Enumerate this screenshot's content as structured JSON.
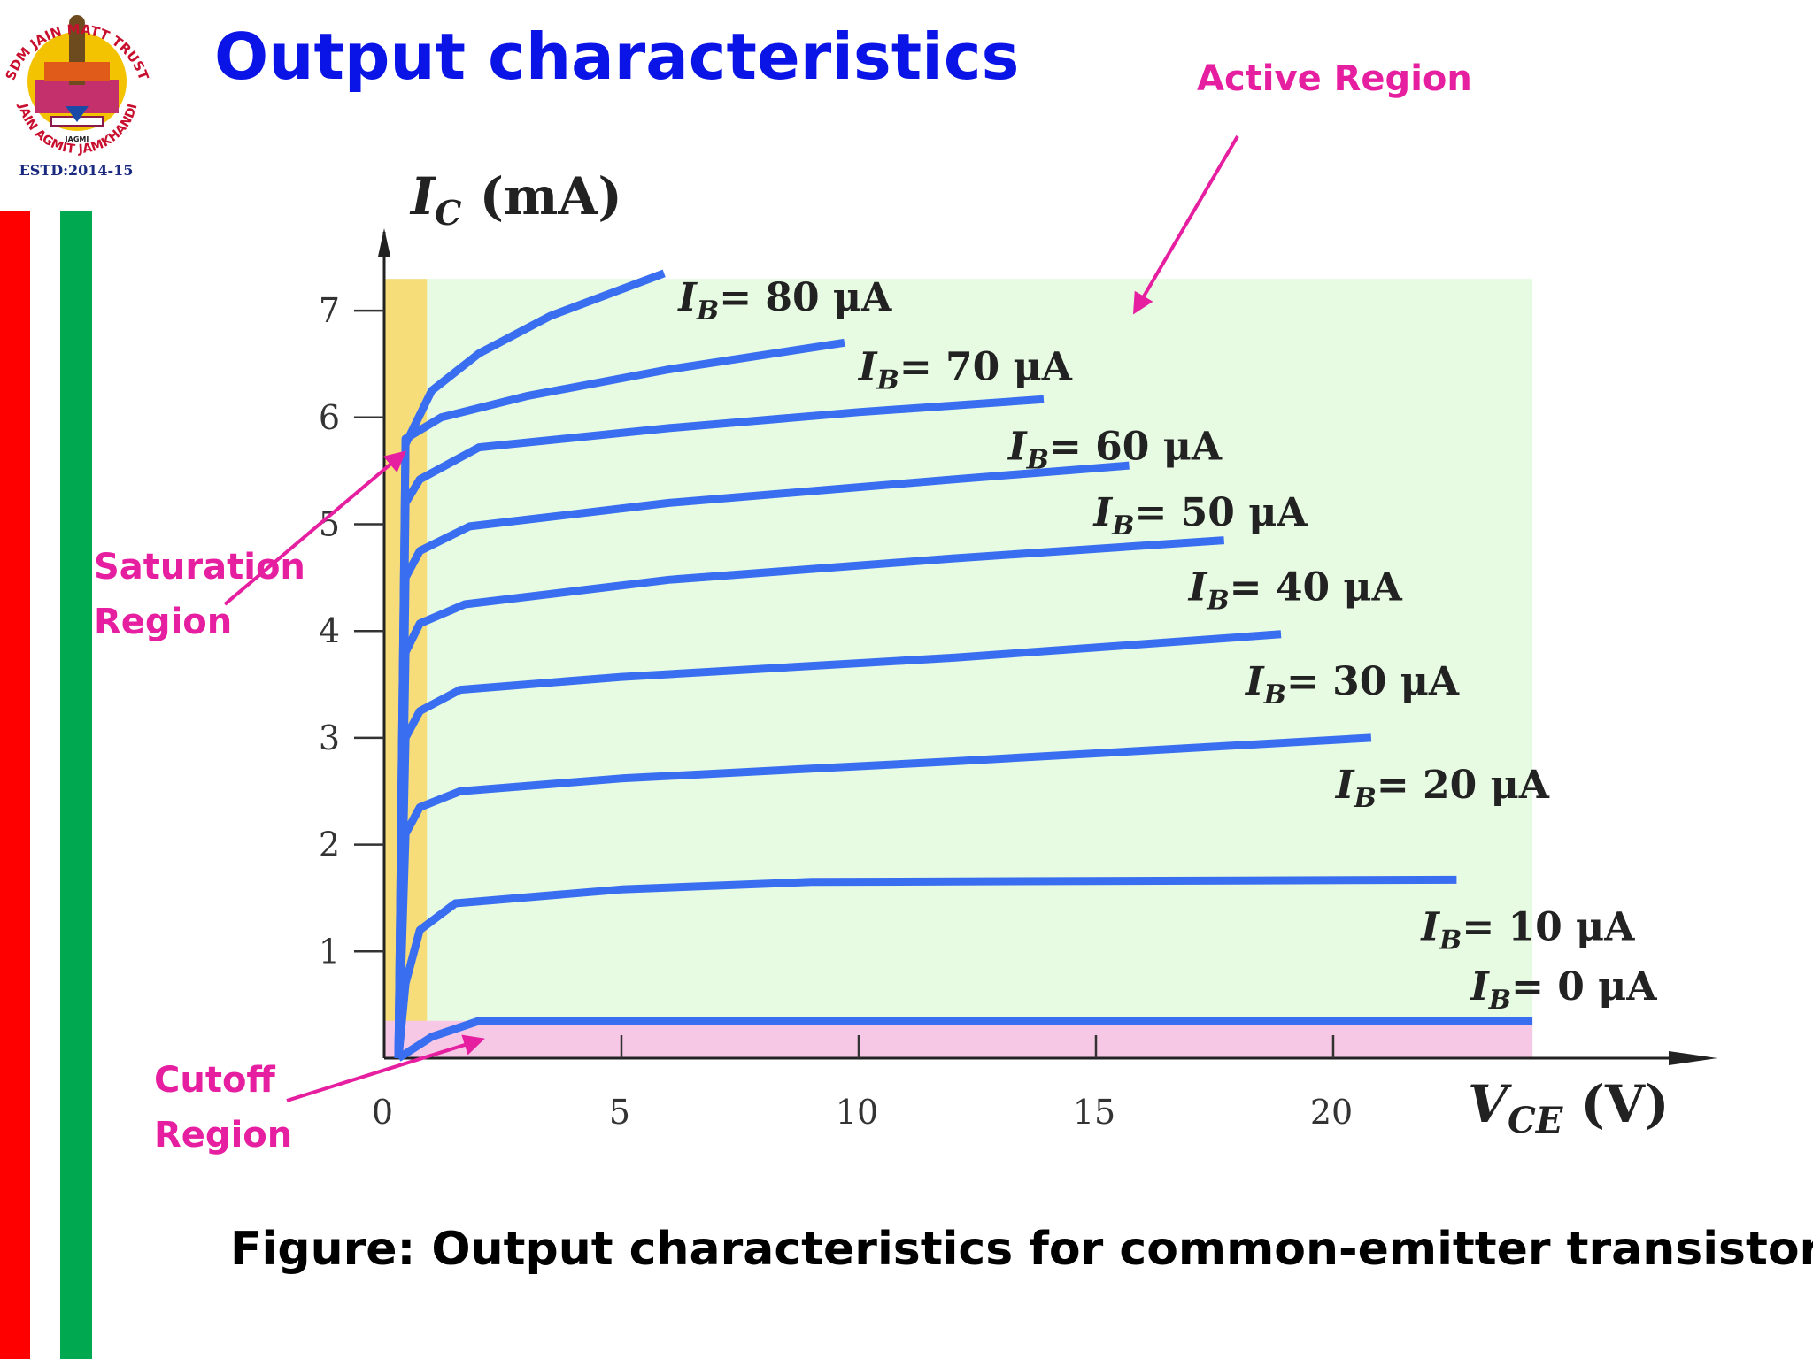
{
  "slide": {
    "title": "Output characteristics",
    "caption": "Figure: Output characteristics for common-emitter transistor"
  },
  "logo": {
    "arc_text": "SDM JAIN MATT TRUST",
    "lower_text": "JAIN AGMIT JAMKHANDI",
    "badge_text": "JAGMI",
    "estd": "ESTD:2014-15"
  },
  "annotations": {
    "active": "Active Region",
    "saturation": [
      "Saturation",
      "Region"
    ],
    "cutoff": [
      "Cutoff",
      "Region"
    ]
  },
  "colors": {
    "title": "#0a14e6",
    "annotation": "#e61ea0",
    "curve": "#3a6ef0",
    "active_region": "#e6fbe2",
    "saturation_region": "#f7dc7a",
    "cutoff_region": "#f7c8e6",
    "stripe_red": "#ff0000",
    "stripe_green": "#00a84f"
  },
  "chart_data": {
    "type": "line",
    "xlabel": "V",
    "xlabel_sub": "CE",
    "xlabel_unit": "(V)",
    "ylabel": "I",
    "ylabel_sub": "C",
    "ylabel_unit": "(mA)",
    "xlim": [
      0,
      25
    ],
    "ylim": [
      0,
      7.5
    ],
    "xticks": [
      0,
      5,
      10,
      15,
      20
    ],
    "yticks": [
      1,
      2,
      3,
      4,
      5,
      6,
      7
    ],
    "regions": {
      "saturation_vce_max": 0.9,
      "cutoff_ic_max": 0.35
    },
    "series": [
      {
        "name": "I_B = 0 μA",
        "label_base": "I",
        "label_sub": "B",
        "label_value": "= 0 μA",
        "points": [
          [
            0.3,
            0
          ],
          [
            1,
            0.2
          ],
          [
            2,
            0.35
          ],
          [
            24.2,
            0.35
          ]
        ]
      },
      {
        "name": "I_B = 10 μA",
        "label_base": "I",
        "label_sub": "B",
        "label_value": "= 10 μA",
        "points": [
          [
            0.3,
            0
          ],
          [
            0.45,
            0.7
          ],
          [
            0.75,
            1.2
          ],
          [
            1.5,
            1.45
          ],
          [
            5,
            1.58
          ],
          [
            9,
            1.65
          ],
          [
            22.6,
            1.67
          ]
        ]
      },
      {
        "name": "I_B = 20 μA",
        "label_base": "I",
        "label_sub": "B",
        "label_value": "= 20 μA",
        "points": [
          [
            0.3,
            0
          ],
          [
            0.45,
            2.1
          ],
          [
            0.75,
            2.35
          ],
          [
            1.6,
            2.5
          ],
          [
            5,
            2.62
          ],
          [
            12,
            2.78
          ],
          [
            20.8,
            3.0
          ]
        ]
      },
      {
        "name": "I_B = 30 μA",
        "label_base": "I",
        "label_sub": "B",
        "label_value": "= 30 μA",
        "points": [
          [
            0.3,
            0
          ],
          [
            0.45,
            3.0
          ],
          [
            0.75,
            3.25
          ],
          [
            1.6,
            3.45
          ],
          [
            5,
            3.57
          ],
          [
            12,
            3.75
          ],
          [
            18.9,
            3.97
          ]
        ]
      },
      {
        "name": "I_B = 40 μA",
        "label_base": "I",
        "label_sub": "B",
        "label_value": "= 40 μA",
        "points": [
          [
            0.3,
            0
          ],
          [
            0.45,
            3.8
          ],
          [
            0.75,
            4.07
          ],
          [
            1.7,
            4.25
          ],
          [
            6,
            4.48
          ],
          [
            12,
            4.68
          ],
          [
            17.7,
            4.85
          ]
        ]
      },
      {
        "name": "I_B = 50 μA",
        "label_base": "I",
        "label_sub": "B",
        "label_value": "= 50 μA",
        "points": [
          [
            0.3,
            0
          ],
          [
            0.45,
            4.5
          ],
          [
            0.75,
            4.75
          ],
          [
            1.8,
            4.98
          ],
          [
            6,
            5.2
          ],
          [
            12,
            5.42
          ],
          [
            15.7,
            5.55
          ]
        ]
      },
      {
        "name": "I_B = 60 μA",
        "label_base": "I",
        "label_sub": "B",
        "label_value": "= 60 μA",
        "points": [
          [
            0.3,
            0
          ],
          [
            0.45,
            5.2
          ],
          [
            0.75,
            5.42
          ],
          [
            2,
            5.72
          ],
          [
            6,
            5.9
          ],
          [
            10,
            6.05
          ],
          [
            13.9,
            6.17
          ]
        ]
      },
      {
        "name": "I_B = 70 μA",
        "label_base": "I",
        "label_sub": "B",
        "label_value": "= 70 μA",
        "points": [
          [
            0.3,
            0
          ],
          [
            0.45,
            5.8
          ],
          [
            1.2,
            6.0
          ],
          [
            3,
            6.2
          ],
          [
            6,
            6.45
          ],
          [
            9.7,
            6.7
          ]
        ]
      },
      {
        "name": "I_B = 80 μA",
        "label_base": "I",
        "label_sub": "B",
        "label_value": "= 80 μA",
        "points": [
          [
            0.3,
            0
          ],
          [
            0.45,
            5.75
          ],
          [
            1,
            6.25
          ],
          [
            2,
            6.6
          ],
          [
            3.5,
            6.95
          ],
          [
            5.9,
            7.35
          ]
        ]
      }
    ]
  }
}
